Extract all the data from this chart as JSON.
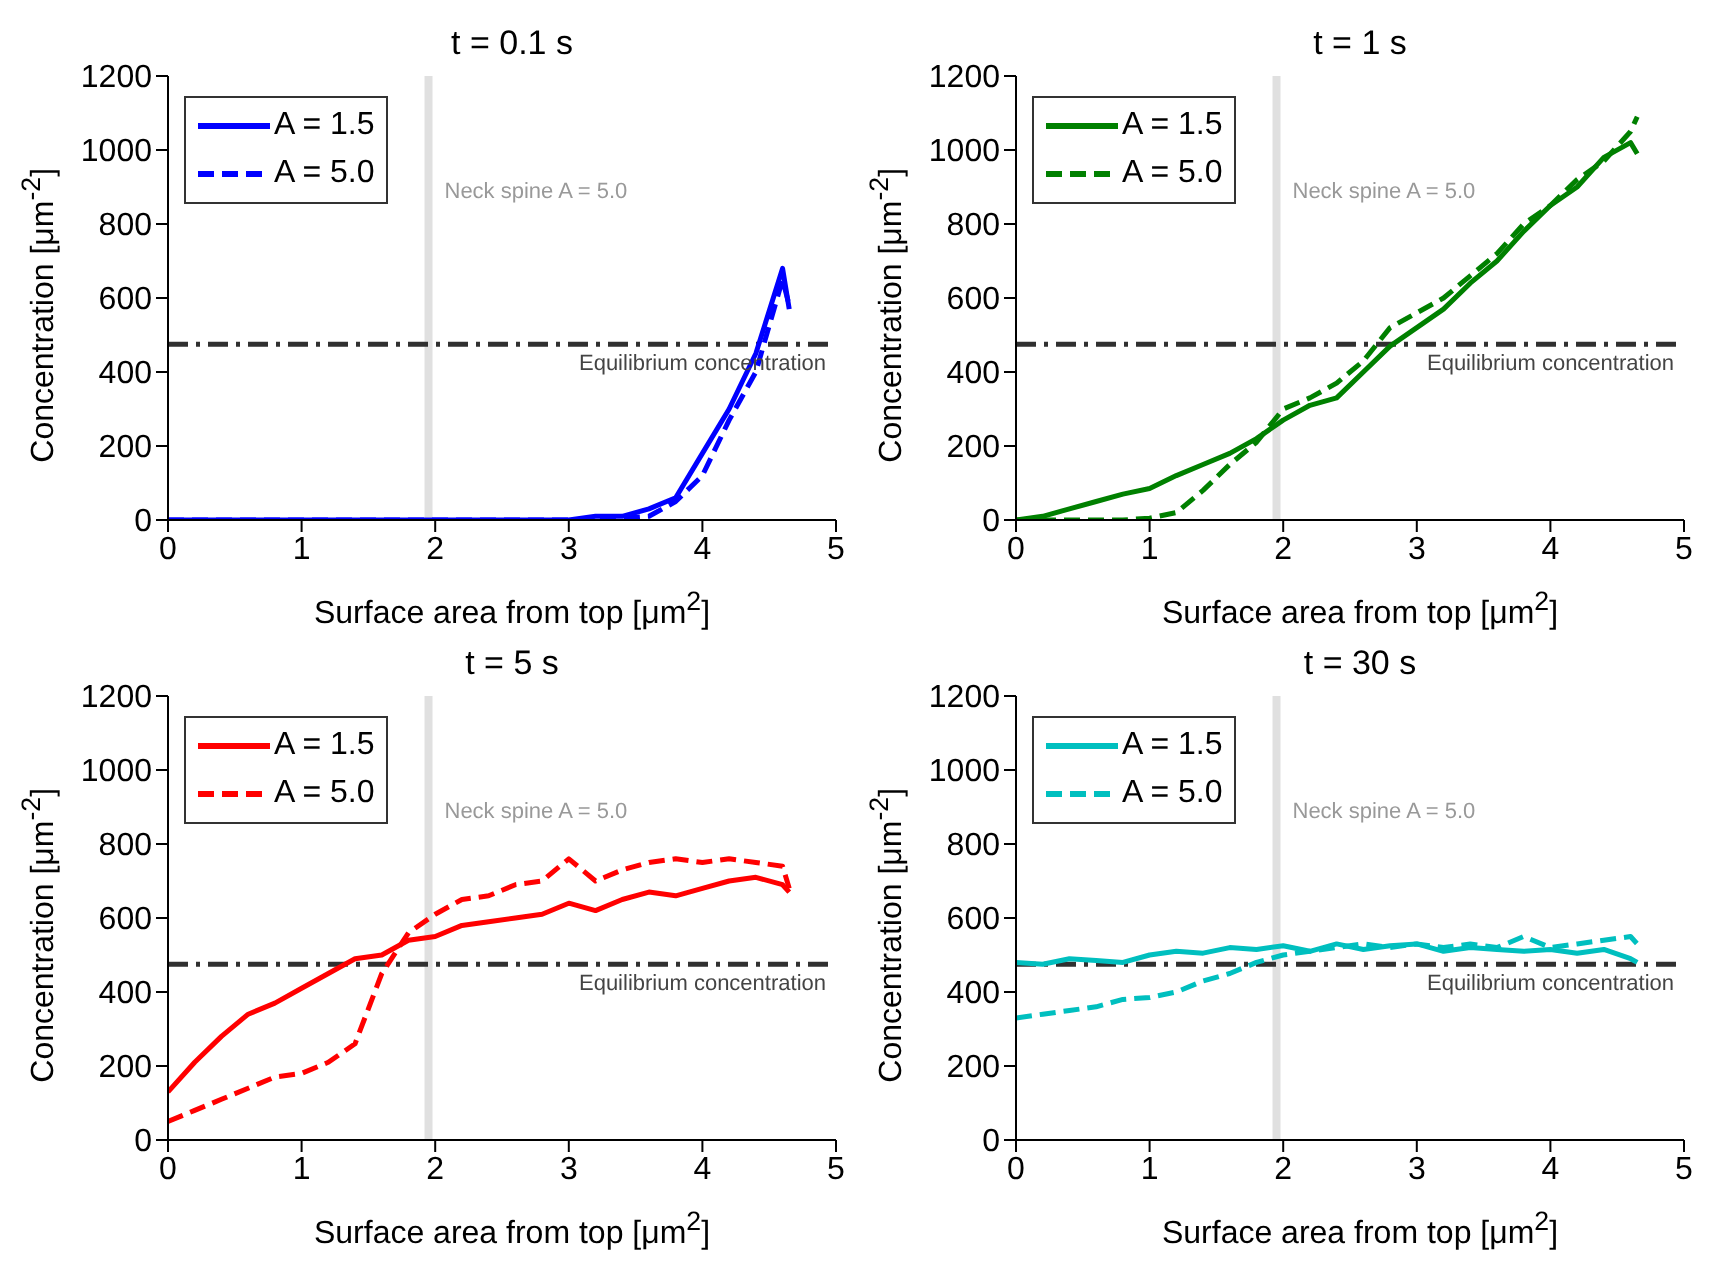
{
  "chart_data": [
    {
      "type": "line",
      "title": "t = 0.1 s",
      "xlabel": "Surface area from top [μm$^{2}$]",
      "ylabel": "Concentration [μm$^{-2}$]",
      "x": [
        0,
        0.2,
        0.4,
        0.6,
        0.8,
        1,
        1.2,
        1.4,
        1.6,
        1.8,
        2,
        2.2,
        2.4,
        2.6,
        2.8,
        3,
        3.2,
        3.4,
        3.6,
        3.8,
        4,
        4.2,
        4.4,
        4.6,
        4.65
      ],
      "xlim": [
        0,
        5
      ],
      "xticks": [
        0,
        1,
        2,
        3,
        4,
        5
      ],
      "ylim": [
        0,
        1200
      ],
      "yticks": [
        0,
        200,
        400,
        600,
        800,
        1000,
        1200
      ],
      "grid": false,
      "legend": "top left",
      "marker": "none",
      "annotations": [
        "Neck spine A = 5.0"
      ],
      "series": [
        {
          "name": "A = 1.5",
          "color": "#0000ff",
          "line_style": "solid",
          "values": [
            0,
            0,
            0,
            0,
            0,
            0,
            0,
            0,
            0,
            0,
            0,
            0,
            0,
            0,
            0,
            0,
            10,
            10,
            30,
            60,
            180,
            300,
            450,
            680,
            570
          ]
        },
        {
          "name": "A = 5.0",
          "color": "#0000ff",
          "line_style": "dashed",
          "values": [
            0,
            0,
            0,
            0,
            0,
            0,
            0,
            0,
            0,
            0,
            0,
            0,
            0,
            0,
            0,
            0,
            0,
            5,
            10,
            50,
            120,
            270,
            400,
            650,
            580
          ]
        }
      ],
      "ref_lines": [
        {
          "axis": "x",
          "value": 1.95,
          "color": "#e0e0e0",
          "line_style": "solid"
        },
        {
          "axis": "y",
          "value": 475,
          "label": "Equilibrium concentration",
          "color": "#303030",
          "line_style": "dashed"
        }
      ]
    },
    {
      "type": "line",
      "title": "t = 1 s",
      "xlabel": "Surface area from top [μm$^{2}$]",
      "ylabel": "Concentration [μm$^{-2}$]",
      "x": [
        0,
        0.2,
        0.4,
        0.6,
        0.8,
        1,
        1.2,
        1.4,
        1.6,
        1.8,
        2,
        2.2,
        2.4,
        2.6,
        2.8,
        3,
        3.2,
        3.4,
        3.6,
        3.8,
        4,
        4.2,
        4.4,
        4.6,
        4.65
      ],
      "xlim": [
        0,
        5
      ],
      "xticks": [
        0,
        1,
        2,
        3,
        4,
        5
      ],
      "ylim": [
        0,
        1200
      ],
      "yticks": [
        0,
        200,
        400,
        600,
        800,
        1000,
        1200
      ],
      "grid": false,
      "legend": "top left",
      "marker": "none",
      "annotations": [
        "Neck spine A = 5.0"
      ],
      "series": [
        {
          "name": "A = 1.5",
          "color": "#008000",
          "line_style": "solid",
          "values": [
            0,
            10,
            30,
            50,
            70,
            85,
            120,
            150,
            180,
            220,
            270,
            310,
            330,
            400,
            470,
            520,
            570,
            640,
            700,
            780,
            850,
            900,
            980,
            1020,
            990
          ]
        },
        {
          "name": "A = 5.0",
          "color": "#008000",
          "line_style": "dashed",
          "values": [
            0,
            0,
            0,
            0,
            0,
            5,
            20,
            80,
            150,
            210,
            300,
            330,
            370,
            430,
            520,
            560,
            600,
            660,
            720,
            800,
            850,
            920,
            970,
            1050,
            1090
          ]
        }
      ],
      "ref_lines": [
        {
          "axis": "x",
          "value": 1.95,
          "color": "#e0e0e0",
          "line_style": "solid"
        },
        {
          "axis": "y",
          "value": 475,
          "label": "Equilibrium concentration",
          "color": "#303030",
          "line_style": "dashed"
        }
      ]
    },
    {
      "type": "line",
      "title": "t = 5 s",
      "xlabel": "Surface area from top [μm$^{2}$]",
      "ylabel": "Concentration [μm$^{-2}$]",
      "x": [
        0,
        0.2,
        0.4,
        0.6,
        0.8,
        1,
        1.2,
        1.4,
        1.6,
        1.8,
        2,
        2.2,
        2.4,
        2.6,
        2.8,
        3,
        3.2,
        3.4,
        3.6,
        3.8,
        4,
        4.2,
        4.4,
        4.6,
        4.65
      ],
      "xlim": [
        0,
        5
      ],
      "xticks": [
        0,
        1,
        2,
        3,
        4,
        5
      ],
      "ylim": [
        0,
        1200
      ],
      "yticks": [
        0,
        200,
        400,
        600,
        800,
        1000,
        1200
      ],
      "grid": false,
      "legend": "top left",
      "marker": "none",
      "annotations": [
        "Neck spine A = 5.0"
      ],
      "series": [
        {
          "name": "A = 1.5",
          "color": "#ff0000",
          "line_style": "solid",
          "values": [
            130,
            210,
            280,
            340,
            370,
            410,
            450,
            490,
            500,
            540,
            550,
            580,
            590,
            600,
            610,
            640,
            620,
            650,
            670,
            660,
            680,
            700,
            710,
            690,
            670
          ]
        },
        {
          "name": "A = 5.0",
          "color": "#ff0000",
          "line_style": "dashed",
          "values": [
            50,
            80,
            110,
            140,
            170,
            180,
            210,
            260,
            450,
            560,
            610,
            650,
            660,
            690,
            700,
            760,
            700,
            730,
            750,
            760,
            750,
            760,
            750,
            740,
            680
          ]
        }
      ],
      "ref_lines": [
        {
          "axis": "x",
          "value": 1.95,
          "color": "#e0e0e0",
          "line_style": "solid"
        },
        {
          "axis": "y",
          "value": 475,
          "label": "Equilibrium concentration",
          "color": "#303030",
          "line_style": "dashed"
        }
      ]
    },
    {
      "type": "line",
      "title": "t = 30 s",
      "xlabel": "Surface area from top [μm$^{2}$]",
      "ylabel": "Concentration [μm$^{-2}$]",
      "x": [
        0,
        0.2,
        0.4,
        0.6,
        0.8,
        1,
        1.2,
        1.4,
        1.6,
        1.8,
        2,
        2.2,
        2.4,
        2.6,
        2.8,
        3,
        3.2,
        3.4,
        3.6,
        3.8,
        4,
        4.2,
        4.4,
        4.6,
        4.65
      ],
      "xlim": [
        0,
        5
      ],
      "xticks": [
        0,
        1,
        2,
        3,
        4,
        5
      ],
      "ylim": [
        0,
        1200
      ],
      "yticks": [
        0,
        200,
        400,
        600,
        800,
        1000,
        1200
      ],
      "grid": false,
      "legend": "top left",
      "marker": "none",
      "annotations": [
        "Neck spine A = 5.0"
      ],
      "series": [
        {
          "name": "A = 1.5",
          "color": "#00bfbf",
          "line_style": "solid",
          "values": [
            480,
            475,
            490,
            485,
            480,
            500,
            510,
            505,
            520,
            515,
            525,
            510,
            530,
            515,
            525,
            530,
            510,
            520,
            515,
            510,
            515,
            505,
            515,
            490,
            480
          ]
        },
        {
          "name": "A = 5.0",
          "color": "#00bfbf",
          "line_style": "dashed",
          "values": [
            330,
            340,
            350,
            360,
            380,
            385,
            400,
            430,
            450,
            480,
            500,
            510,
            520,
            530,
            520,
            530,
            520,
            530,
            520,
            550,
            520,
            530,
            540,
            550,
            530
          ]
        }
      ],
      "ref_lines": [
        {
          "axis": "x",
          "value": 1.95,
          "color": "#e0e0e0",
          "line_style": "solid"
        },
        {
          "axis": "y",
          "value": 475,
          "label": "Equilibrium concentration",
          "color": "#303030",
          "line_style": "dashed"
        }
      ]
    }
  ]
}
